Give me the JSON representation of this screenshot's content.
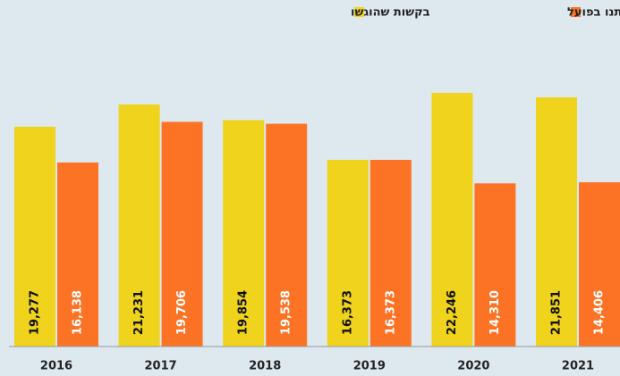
{
  "chart_data": {
    "type": "bar",
    "categories": [
      "2016",
      "2017",
      "2018",
      "2019",
      "2020",
      "2021"
    ],
    "series": [
      {
        "name": "בקשות שהוגשו",
        "color": "#efd31c",
        "values": [
          19277,
          21231,
          19854,
          16373,
          22246,
          21851
        ],
        "value_labels": [
          "19,277",
          "21,231",
          "19,854",
          "16,373",
          "22,246",
          "21,851"
        ]
      },
      {
        "name": "צווים שניתנו בפועל",
        "color": "#fd7325",
        "values": [
          16138,
          19706,
          19538,
          16373,
          14310,
          14406
        ],
        "value_labels": [
          "16,138",
          "19,706",
          "19,538",
          "16,373",
          "14,310",
          "14,406"
        ]
      }
    ]
  }
}
